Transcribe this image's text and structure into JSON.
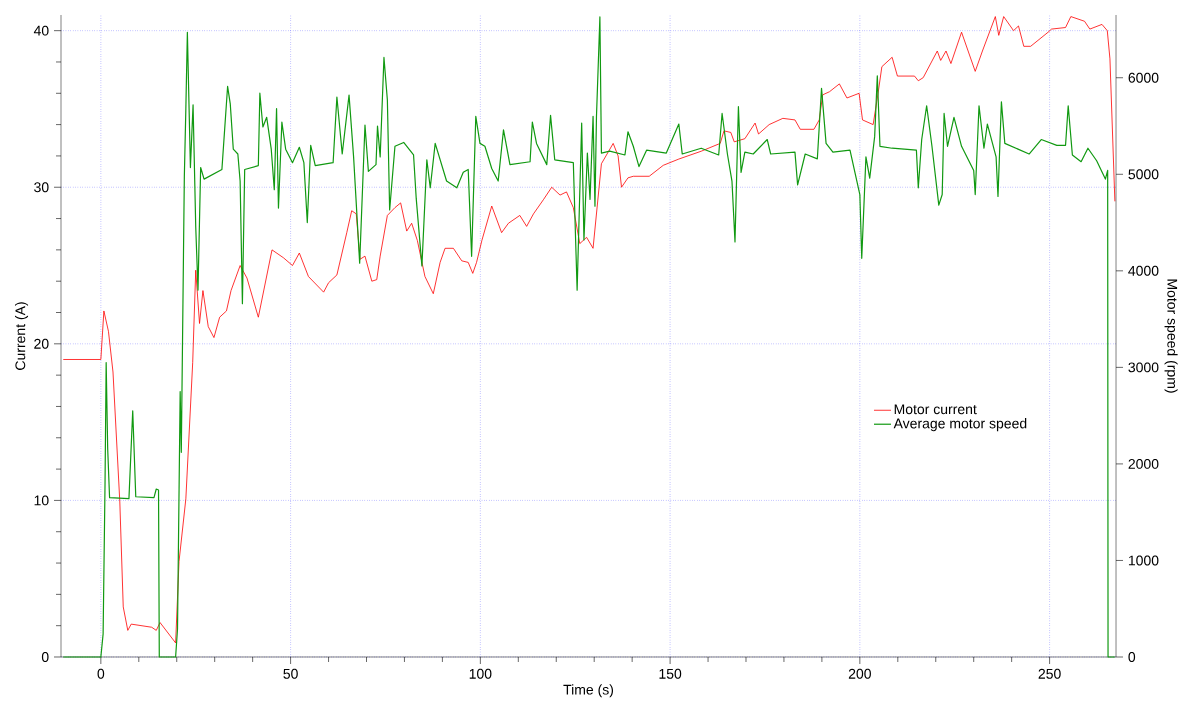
{
  "chart_data": {
    "type": "line",
    "xlabel": "Time (s)",
    "ylabel": "Current (A)",
    "y2label": "Motor speed (rpm)",
    "xlim": [
      -10.5,
      267.5
    ],
    "ylim": [
      0,
      41
    ],
    "y2lim": [
      0,
      6650
    ],
    "xticks": [
      0,
      50,
      100,
      150,
      200,
      250
    ],
    "yticks": [
      0,
      10,
      20,
      30,
      40
    ],
    "y2ticks": [
      0,
      1000,
      2000,
      3000,
      4000,
      5000,
      6000
    ],
    "grid": true,
    "legend": "right",
    "series": [
      {
        "name": "Motor current",
        "color": "#ff0000",
        "axis": "y",
        "x": [
          -9.9,
          0,
          0.8,
          2,
          3.2,
          5,
          5.9,
          7.1,
          8,
          13.4,
          14.6,
          15.6,
          19.7,
          20.6,
          22.4,
          24.2,
          25,
          26,
          26.9,
          28.3,
          29.8,
          31.3,
          33.1,
          34.3,
          36.7,
          38.5,
          41.5,
          45.1,
          48.1,
          50.5,
          52.3,
          54.7,
          58.7,
          60,
          62.2,
          64.8,
          66.1,
          67.3,
          68.3,
          69.6,
          71.4,
          72.7,
          73.6,
          75.5,
          77.5,
          79,
          80.6,
          81.9,
          83.4,
          85.4,
          87.6,
          89.4,
          90.7,
          92.9,
          95.1,
          96.8,
          98,
          99,
          100.4,
          103,
          105.6,
          107.4,
          110.4,
          112.2,
          114,
          116.6,
          118.8,
          121,
          122.7,
          124.5,
          126.2,
          128,
          129.7,
          131.9,
          135,
          136.3,
          137.2,
          138.9,
          140.3,
          144.5,
          148.2,
          152.3,
          158.2,
          163.2,
          164.2,
          166,
          166.9,
          169.7,
          172.4,
          173.3,
          176.1,
          179.7,
          182.9,
          184.3,
          187.9,
          189.3,
          190.2,
          192,
          194.6,
          196.6,
          199.8,
          200.7,
          203.5,
          204.8,
          205.8,
          208.5,
          209.9,
          214.4,
          215.4,
          216.7,
          220.4,
          221.3,
          222.7,
          224,
          226.8,
          230.4,
          232.3,
          235.7,
          236.6,
          237.9,
          240.5,
          241.8,
          243.2,
          245,
          249.6,
          250.5,
          254.2,
          255.6,
          259.2,
          260.6,
          263.8,
          265.2,
          265.9,
          267.2
        ],
        "values": [
          19.0,
          19.0,
          22.1,
          20.8,
          18.2,
          9.9,
          3.2,
          1.7,
          2.1,
          1.9,
          1.7,
          2.2,
          0.9,
          6.1,
          10.1,
          18.8,
          24.7,
          21.3,
          23.4,
          21.1,
          20.4,
          21.7,
          22.1,
          23.4,
          25.0,
          24.2,
          21.7,
          26.0,
          25.5,
          25.0,
          25.8,
          24.3,
          23.3,
          23.9,
          24.4,
          27.1,
          28.5,
          28.3,
          25.4,
          25.6,
          24.0,
          24.1,
          25.6,
          28.2,
          28.7,
          29.0,
          27.2,
          27.7,
          26.6,
          24.3,
          23.2,
          25.2,
          26.1,
          26.1,
          25.3,
          25.2,
          24.5,
          25.2,
          26.6,
          28.8,
          27.1,
          27.7,
          28.2,
          27.5,
          28.3,
          29.2,
          30.0,
          29.5,
          29.7,
          28.7,
          26.4,
          26.8,
          26.1,
          31.5,
          32.8,
          32.0,
          30.0,
          30.6,
          30.7,
          30.7,
          31.4,
          31.8,
          32.3,
          32.8,
          33.6,
          33.5,
          32.9,
          33.1,
          34.1,
          33.4,
          34.0,
          34.4,
          34.3,
          33.7,
          33.7,
          34.3,
          35.9,
          36.1,
          36.6,
          35.7,
          36.0,
          34.3,
          34.0,
          36.0,
          37.7,
          38.3,
          37.1,
          37.1,
          36.8,
          37.0,
          38.7,
          38.1,
          38.7,
          37.9,
          39.9,
          37.4,
          38.7,
          40.9,
          39.7,
          40.9,
          40.0,
          40.3,
          39.0,
          39.0,
          39.9,
          40.1,
          40.2,
          40.9,
          40.6,
          40.1,
          40.4,
          40.0,
          38.2,
          29.1
        ]
      },
      {
        "name": "Average motor speed",
        "color": "#119911",
        "axis": "y2",
        "x": [
          -9.9,
          0,
          0.6,
          1.1,
          1.4,
          1.8,
          2.3,
          7.4,
          8.4,
          9.2,
          14,
          14.6,
          15.2,
          15.4,
          19.7,
          20.2,
          20.9,
          21.2,
          22,
          22.4,
          22.8,
          23.6,
          24.3,
          25,
          25.6,
          26.3,
          27.2,
          31.9,
          33.4,
          34.1,
          34.9,
          36.1,
          36.7,
          37.3,
          37.9,
          41.5,
          41.9,
          42.7,
          43.7,
          44.9,
          45.7,
          46.3,
          46.8,
          47.7,
          48.7,
          50.5,
          52.3,
          53.5,
          54.4,
          55.3,
          56.5,
          61.2,
          62.2,
          63.6,
          65.4,
          66.6,
          68.2,
          69.6,
          70.5,
          72.5,
          72.9,
          73.6,
          74.6,
          75.5,
          76.1,
          77.5,
          79.8,
          82.4,
          83.1,
          84.6,
          85.9,
          86.8,
          88.1,
          91.1,
          93.8,
          95.5,
          96.8,
          97.7,
          98.8,
          99.9,
          101.2,
          103,
          104.7,
          106.1,
          107.8,
          113.1,
          113.7,
          114.8,
          117.5,
          118.5,
          119.6,
          124.5,
          125.5,
          126.7,
          127.3,
          128.2,
          128.9,
          129.7,
          130.2,
          130.6,
          131.5,
          131.9,
          134.1,
          138.1,
          138.9,
          140.3,
          141.8,
          143.8,
          149,
          152.3,
          153.2,
          158.2,
          162.8,
          163.7,
          165.1,
          166.3,
          167.1,
          168,
          168.7,
          169.7,
          171.9,
          175.6,
          176.5,
          182.9,
          183.6,
          185.6,
          188.8,
          189.9,
          191.1,
          192.9,
          197.4,
          200,
          200.5,
          201.6,
          202.6,
          203.9,
          204.6,
          205.3,
          208.5,
          214.9,
          215.4,
          216.3,
          217.6,
          219,
          220.8,
          221.7,
          222.2,
          223.1,
          224.8,
          226.8,
          230,
          230.4,
          231.4,
          232.7,
          233.6,
          235.9,
          236.4,
          237.3,
          238.2,
          244.6,
          247.8,
          251.9,
          254.2,
          254.9,
          256,
          258.3,
          260.1,
          262.4,
          264.7,
          265.3,
          265.4,
          267.2
        ],
        "values": [
          0,
          0,
          240,
          1790,
          3050,
          2160,
          1650,
          1640,
          2550,
          1660,
          1650,
          1740,
          1730,
          0,
          0,
          290,
          2750,
          2120,
          4980,
          5680,
          6470,
          5070,
          5720,
          4460,
          3800,
          5070,
          4950,
          5050,
          5910,
          5730,
          5260,
          5210,
          4930,
          3660,
          5050,
          5090,
          5840,
          5490,
          5590,
          5260,
          4840,
          5680,
          4650,
          5540,
          5260,
          5120,
          5280,
          5120,
          4500,
          5300,
          5090,
          5120,
          5800,
          5210,
          5820,
          5180,
          4080,
          5510,
          5030,
          5100,
          5500,
          5180,
          6210,
          5770,
          4630,
          5290,
          5330,
          5200,
          4750,
          4050,
          5150,
          4860,
          5320,
          4930,
          4860,
          5020,
          5050,
          4150,
          5600,
          5320,
          5290,
          5060,
          4930,
          5460,
          5100,
          5130,
          5540,
          5320,
          5100,
          5610,
          5150,
          5120,
          3800,
          5530,
          4320,
          5220,
          4740,
          5600,
          4670,
          5600,
          6630,
          5220,
          5240,
          5200,
          5440,
          5290,
          5080,
          5250,
          5220,
          5520,
          5210,
          5270,
          5200,
          5630,
          5210,
          4930,
          4300,
          5700,
          5020,
          5230,
          5210,
          5360,
          5210,
          5230,
          4890,
          5210,
          5160,
          5890,
          5320,
          5230,
          5250,
          4790,
          4130,
          5180,
          4960,
          5390,
          6020,
          5290,
          5270,
          5250,
          4860,
          5360,
          5710,
          5290,
          4680,
          4790,
          5630,
          5290,
          5590,
          5290,
          5040,
          4790,
          5710,
          5270,
          5520,
          5180,
          4770,
          5750,
          5320,
          5210,
          5360,
          5300,
          5300,
          5710,
          5200,
          5130,
          5270,
          5140,
          4950,
          5040,
          0,
          0
        ]
      }
    ]
  }
}
